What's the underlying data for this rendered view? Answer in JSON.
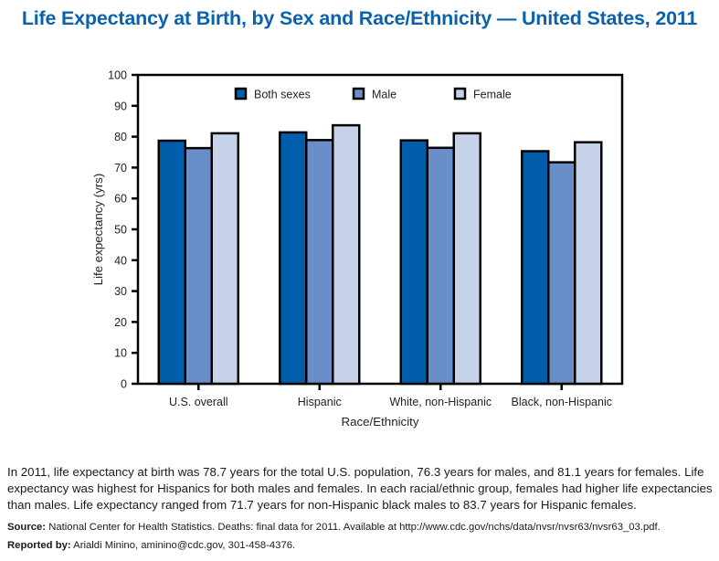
{
  "title": "Life Expectancy at Birth, by Sex and Race/Ethnicity — United States, 2011",
  "caption": "In 2011, life expectancy at birth was 78.7 years for the total U.S. population, 76.3 years for males, and 81.1 years for females. Life expectancy was highest for Hispanics for both males and females. In each racial/ethnic group, females had higher life expectancies than males. Life expectancy ranged from 71.7 years for non-Hispanic black males to 83.7 years for Hispanic females.",
  "source": {
    "label": "Source:",
    "text": " National Center for Health Statistics. Deaths: final data for 2011. Available at http://www.cdc.gov/nchs/data/nvsr/nvsr63/nvsr63_03.pdf."
  },
  "reported": {
    "label": "Reported by:",
    "text": " Arialdi Minino, aminino@cdc.gov, 301-458-4376."
  },
  "chart_data": {
    "type": "bar",
    "title": "Life Expectancy at Birth, by Sex and Race/Ethnicity — United States, 2011",
    "xlabel": "Race/Ethnicity",
    "ylabel": "Life expectancy (yrs)",
    "ylim": [
      0,
      100
    ],
    "yticks": [
      0,
      10,
      20,
      30,
      40,
      50,
      60,
      70,
      80,
      90,
      100
    ],
    "grid": false,
    "legend_position": "top",
    "categories": [
      "U.S. overall",
      "Hispanic",
      "White, non-Hispanic",
      "Black, non-Hispanic"
    ],
    "series": [
      {
        "name": "Both sexes",
        "color": "#005eaa",
        "values": [
          78.7,
          81.4,
          78.8,
          75.3
        ]
      },
      {
        "name": "Male",
        "color": "#6a8fc8",
        "values": [
          76.3,
          78.9,
          76.4,
          71.7
        ]
      },
      {
        "name": "Female",
        "color": "#c5d2ea",
        "values": [
          81.1,
          83.7,
          81.1,
          78.2
        ]
      }
    ]
  }
}
